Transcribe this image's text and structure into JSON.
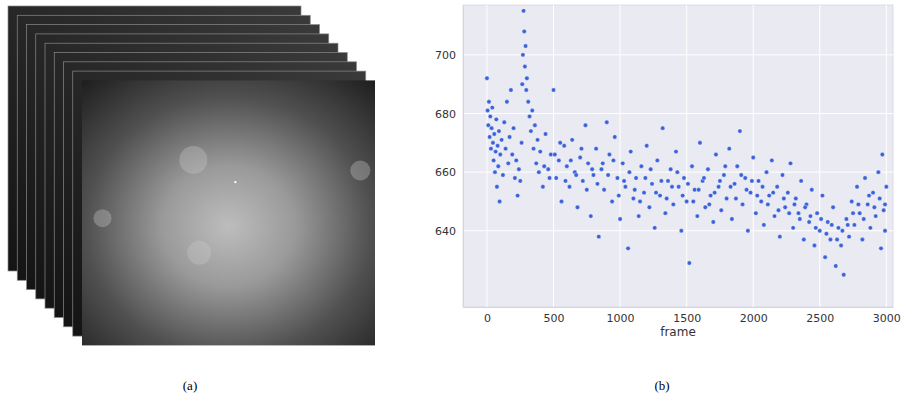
{
  "image_panel": {
    "caption": "(a)"
  },
  "chart_data": {
    "type": "scatter",
    "caption": "(b)",
    "x_label": "frame",
    "color": "#3b62d9",
    "marker": "circle",
    "grid": true,
    "xlim": [
      -180,
      3050
    ],
    "ylim": [
      614,
      717
    ],
    "xticks": [
      0,
      500,
      1000,
      1500,
      2000,
      2500,
      3000
    ],
    "yticks": [
      640,
      660,
      680,
      700
    ],
    "x": [
      0,
      5,
      10,
      15,
      20,
      25,
      30,
      35,
      40,
      45,
      50,
      55,
      60,
      65,
      70,
      75,
      80,
      85,
      90,
      95,
      100,
      110,
      120,
      130,
      140,
      150,
      160,
      170,
      180,
      190,
      200,
      210,
      220,
      230,
      240,
      250,
      260,
      265,
      270,
      275,
      280,
      285,
      290,
      295,
      300,
      310,
      320,
      330,
      340,
      350,
      360,
      370,
      380,
      390,
      400,
      420,
      440,
      460,
      480,
      500,
      520,
      540,
      560,
      580,
      600,
      620,
      640,
      660,
      680,
      700,
      720,
      740,
      760,
      780,
      800,
      820,
      840,
      860,
      880,
      900,
      920,
      940,
      960,
      980,
      1000,
      1020,
      1040,
      1060,
      1080,
      1100,
      1120,
      1140,
      1160,
      1180,
      1200,
      1220,
      1240,
      1260,
      1280,
      1300,
      1320,
      1340,
      1360,
      1380,
      1400,
      1420,
      1440,
      1460,
      1480,
      1500,
      1520,
      1540,
      1560,
      1580,
      1600,
      1620,
      1640,
      1660,
      1680,
      1700,
      1720,
      1740,
      1760,
      1780,
      1800,
      1820,
      1840,
      1860,
      1880,
      1900,
      1920,
      1940,
      1960,
      1980,
      2000,
      2020,
      2040,
      2060,
      2080,
      2100,
      2120,
      2140,
      2160,
      2180,
      2200,
      2220,
      2240,
      2260,
      2280,
      2300,
      2320,
      2340,
      2360,
      2380,
      2400,
      2420,
      2440,
      2460,
      2480,
      2500,
      2520,
      2540,
      2560,
      2580,
      2600,
      2620,
      2640,
      2660,
      2680,
      2700,
      2720,
      2740,
      2760,
      2780,
      2800,
      2820,
      2840,
      2860,
      2880,
      2900,
      2920,
      2940,
      2960,
      2970,
      2980,
      2990,
      3000,
      430,
      470,
      510,
      550,
      590,
      630,
      670,
      710,
      750,
      790,
      830,
      870,
      910,
      950,
      990,
      1030,
      1070,
      1110,
      1150,
      1190,
      1230,
      1270,
      1310,
      1350,
      1390,
      1430,
      1470,
      1510,
      1550,
      1590,
      1630,
      1670,
      1710,
      1750,
      1790,
      1830,
      1870,
      1910,
      1950,
      1990,
      2030,
      2070,
      2110,
      2150,
      2190,
      2230,
      2270,
      2310,
      2350,
      2390,
      2430,
      2470,
      2510,
      2550,
      2590,
      2630,
      2670,
      2710,
      2750,
      2790,
      2830,
      2870,
      2910,
      2950,
      2990
    ],
    "values": [
      692,
      681,
      676,
      684,
      672,
      679,
      668,
      675,
      682,
      670,
      664,
      673,
      660,
      667,
      678,
      655,
      669,
      662,
      674,
      650,
      666,
      671,
      659,
      677,
      668,
      684,
      663,
      672,
      688,
      666,
      675,
      658,
      664,
      652,
      661,
      657,
      670,
      690,
      700,
      715,
      708,
      696,
      703,
      688,
      692,
      684,
      679,
      674,
      681,
      668,
      676,
      663,
      671,
      660,
      667,
      655,
      673,
      661,
      666,
      688,
      658,
      664,
      650,
      669,
      662,
      655,
      671,
      660,
      648,
      665,
      657,
      676,
      663,
      645,
      659,
      668,
      638,
      661,
      654,
      677,
      666,
      650,
      672,
      658,
      644,
      663,
      655,
      634,
      667,
      651,
      658,
      645,
      662,
      653,
      669,
      648,
      656,
      641,
      664,
      652,
      675,
      646,
      657,
      661,
      649,
      667,
      655,
      640,
      658,
      650,
      629,
      662,
      654,
      645,
      670,
      657,
      648,
      661,
      652,
      643,
      666,
      655,
      647,
      659,
      651,
      668,
      644,
      656,
      662,
      674,
      649,
      658,
      640,
      653,
      665,
      646,
      657,
      650,
      642,
      660,
      652,
      664,
      645,
      655,
      638,
      659,
      648,
      653,
      663,
      641,
      651,
      646,
      657,
      637,
      649,
      643,
      654,
      635,
      646,
      640,
      652,
      631,
      643,
      637,
      648,
      628,
      641,
      635,
      625,
      644,
      638,
      650,
      642,
      655,
      646,
      637,
      658,
      649,
      641,
      653,
      645,
      660,
      634,
      666,
      647,
      640,
      655,
      662,
      658,
      666,
      670,
      657,
      664,
      659,
      668,
      654,
      661,
      656,
      663,
      659,
      664,
      652,
      657,
      660,
      654,
      650,
      658,
      661,
      653,
      657,
      651,
      655,
      660,
      652,
      656,
      650,
      654,
      658,
      649,
      653,
      657,
      662,
      655,
      651,
      659,
      654,
      657,
      652,
      655,
      649,
      653,
      647,
      651,
      646,
      649,
      644,
      648,
      645,
      641,
      644,
      639,
      642,
      637,
      640,
      642,
      646,
      649,
      644,
      652,
      648,
      651,
      649
    ]
  }
}
